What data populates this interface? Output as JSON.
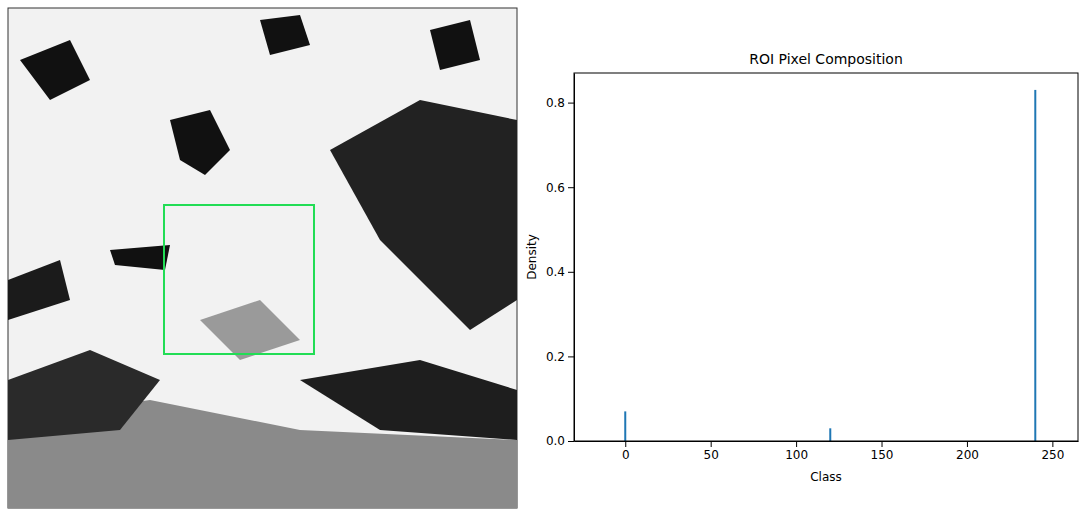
{
  "chart_data": {
    "type": "bar",
    "title": "ROI Pixel Composition",
    "x_label": "Class",
    "y_label": "Density",
    "x": [
      0,
      120,
      240
    ],
    "values": [
      0.07,
      0.03,
      0.83
    ],
    "color": "#1f77b4",
    "xlim": [
      -30,
      265
    ],
    "xticks": [
      0,
      50,
      100,
      150,
      200,
      250
    ],
    "ylim": [
      0,
      0.87
    ],
    "yticks": [
      {
        "value": 0,
        "label": "0.0"
      },
      0.2,
      0.4,
      0.6,
      0.8
    ],
    "grid": false
  }
}
